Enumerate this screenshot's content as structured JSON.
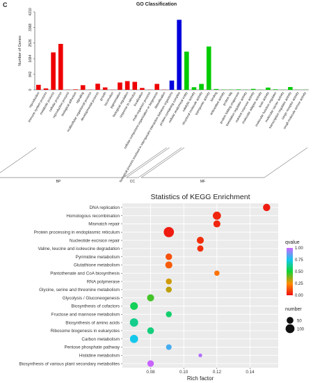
{
  "panel_label": "C",
  "chart_data": [
    {
      "type": "bar",
      "title": "GO Classification",
      "ylabel": "Number of Genes",
      "yticks": [
        0,
        842,
        1684,
        2526,
        3368,
        4210
      ],
      "ylim": [
        0,
        4210
      ],
      "groups": [
        {
          "label": "BP",
          "color": "#ee0000",
          "start": 0,
          "end": 17
        },
        {
          "label": "CC",
          "color": "#0000dd",
          "start": 18,
          "end": 19
        },
        {
          "label": "MF",
          "color": "#00cc00",
          "start": 20,
          "end": 36
        }
      ],
      "categories": [
        "reproduction",
        "immune system process",
        "metabolic process",
        "cellular process",
        "reproductive process",
        "biological adhesion",
        "signaling",
        "multicellular organismal process",
        "developmental process",
        "growth",
        "locomotion",
        "pigmentation",
        "biological regulation",
        "response to stimulus",
        "localization",
        "multi-organism process",
        "cellular component organization or biogenesis",
        "detoxification",
        "biological process involved in interspecies interaction between organisms",
        "protein-containing complex",
        "cellular anatomical entity",
        "catalytic activity",
        "structural molecule activity",
        "transporter activity",
        "binding",
        "antioxidant activity",
        "protein tag",
        "protein folding chaperone",
        "translation regulator activity",
        "nutrient reservoir activity",
        "molecular adaptor activity",
        "toxin activity",
        "molecular function regulator",
        "molecular carrier activity",
        "transcription regulator activity",
        "cargo receptor activity",
        "small molecule sensor activity"
      ],
      "values": [
        270,
        75,
        2020,
        2480,
        10,
        25,
        250,
        10,
        330,
        130,
        10,
        395,
        470,
        430,
        100,
        10,
        320,
        10,
        500,
        3780,
        2060,
        140,
        320,
        2340,
        45,
        15,
        15,
        25,
        10,
        50,
        10,
        120,
        30,
        10,
        150,
        10,
        10
      ]
    },
    {
      "type": "scatter",
      "title": "Statistics of KEGG Enrichment",
      "xlabel": "Rich factor",
      "xticks": [
        "0.08",
        "0.10",
        "0.12",
        "0.14"
      ],
      "xlim": [
        0.063,
        0.157
      ],
      "pathways": [
        "DNA replication",
        "Homologous recombination",
        "Mismatch repair",
        "Protein processing in endoplasmic reticulum",
        "Nucleotide excision repair",
        "Valine, leucine and isoleucine degradation",
        "Pyrimidine metabolism",
        "Glutathione metabolism",
        "Pantothenate and CoA biosynthesis",
        "RNA polymerase",
        "Glycine, serine and threonine metabolism",
        "Glycolysis / Gluconeogenesis",
        "Biosynthesis of cofactors",
        "Fructose and mannose metabolism",
        "Biosynthesis of amino acids",
        "Ribosome biogenesis in eukaryotes",
        "Carbon metabolism",
        "Pentose phosphate pathway",
        "Histidine metabolism",
        "Biosynthesis of various plant secondary metabolites"
      ],
      "rich_factor": [
        0.15,
        0.12,
        0.12,
        0.091,
        0.11,
        0.11,
        0.091,
        0.091,
        0.12,
        0.091,
        0.091,
        0.08,
        0.07,
        0.091,
        0.07,
        0.08,
        0.07,
        0.091,
        0.11,
        0.08
      ],
      "qvalue": [
        0.02,
        0.04,
        0.04,
        0.02,
        0.06,
        0.06,
        0.13,
        0.15,
        0.2,
        0.3,
        0.32,
        0.45,
        0.55,
        0.58,
        0.62,
        0.6,
        0.75,
        0.82,
        0.97,
        1.0
      ],
      "number": [
        60,
        80,
        55,
        140,
        55,
        40,
        45,
        55,
        25,
        35,
        35,
        55,
        70,
        35,
        85,
        50,
        80,
        30,
        8,
        45
      ],
      "legend_color": {
        "title": "qvalue",
        "ticks": [
          "1.00",
          "0.75",
          "0.50",
          "0.25",
          "0.00"
        ]
      },
      "legend_size": {
        "title": "number",
        "ticks": [
          "50",
          "100"
        ]
      },
      "colors": {
        "low": "#ee1111",
        "mid1": "#ff9900",
        "mid2": "#11dd33",
        "mid3": "#11ccee",
        "high": "#cc66ff"
      }
    }
  ]
}
